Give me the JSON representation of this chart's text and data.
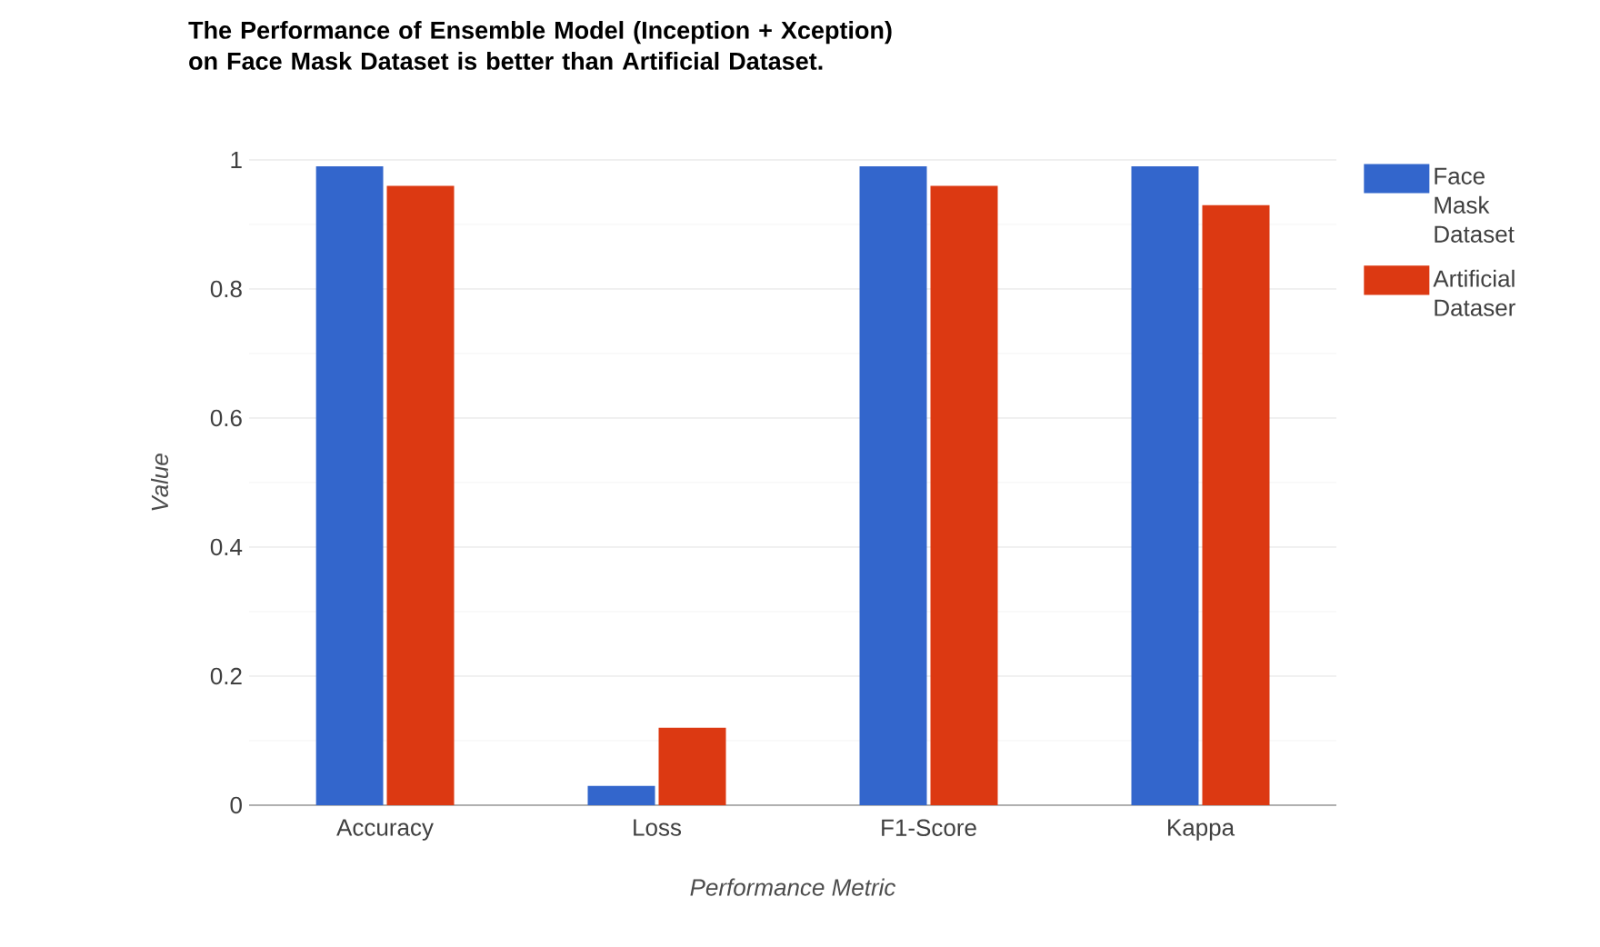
{
  "chart_data": {
    "type": "bar",
    "title": "The Performance of Ensemble Model (Inception + Xception) on Face Mask Dataset is better than Artificial Dataset.",
    "xlabel": "Performance Metric",
    "ylabel": "Value",
    "categories": [
      "Accuracy",
      "Loss",
      "F1-Score",
      "Kappa"
    ],
    "series": [
      {
        "name": "Face Mask Dataset",
        "color": "#3366cc",
        "values": [
          0.99,
          0.03,
          0.99,
          0.99
        ]
      },
      {
        "name": "Artificial Dataser",
        "color": "#dc3912",
        "values": [
          0.96,
          0.12,
          0.96,
          0.93
        ]
      }
    ],
    "ylim": [
      0,
      1
    ],
    "yticks": [
      0,
      0.2,
      0.4,
      0.6,
      0.8,
      1
    ],
    "grid": "y",
    "legend": "top right"
  }
}
